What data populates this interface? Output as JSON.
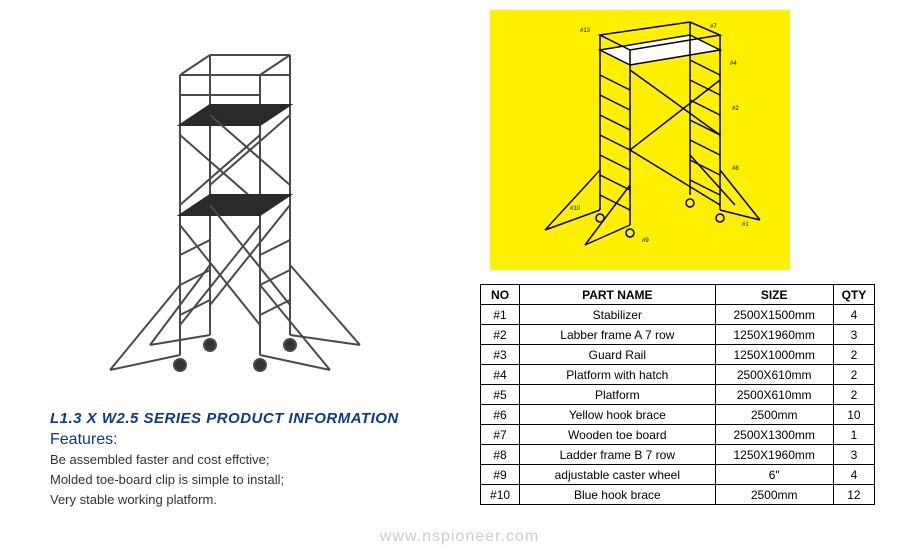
{
  "title": "L1.3 X W2.5 SERIES PRODUCT INFORMATION",
  "features_label": "Features:",
  "features": [
    "Be assembled faster and cost effctive;",
    "Molded toe-board clip is simple to install;",
    "Very stable working platform."
  ],
  "colors": {
    "title_blue": "#0a3a8a",
    "diagram_bg": "#fff000",
    "border": "#000000",
    "text": "#333333",
    "watermark": "#cccccc"
  },
  "table": {
    "headers": {
      "no": "NO",
      "name": "PART NAME",
      "size": "SIZE",
      "qty": "QTY"
    },
    "rows": [
      {
        "no": "#1",
        "name": "Stabilizer",
        "size": "2500X1500mm",
        "qty": "4"
      },
      {
        "no": "#2",
        "name": "Labber frame A 7 row",
        "size": "1250X1960mm",
        "qty": "3"
      },
      {
        "no": "#3",
        "name": "Guard Rail",
        "size": "1250X1000mm",
        "qty": "2"
      },
      {
        "no": "#4",
        "name": "Platform with hatch",
        "size": "2500X610mm",
        "qty": "2"
      },
      {
        "no": "#5",
        "name": "Platform",
        "size": "2500X610mm",
        "qty": "2"
      },
      {
        "no": "#6",
        "name": "Yellow hook brace",
        "size": "2500mm",
        "qty": "10"
      },
      {
        "no": "#7",
        "name": "Wooden toe board",
        "size": "2500X1300mm",
        "qty": "1"
      },
      {
        "no": "#8",
        "name": "Ladder frame B 7 row",
        "size": "1250X1960mm",
        "qty": "3"
      },
      {
        "no": "#9",
        "name": "adjustable caster wheel",
        "size": "6\"",
        "qty": "4"
      },
      {
        "no": "#10",
        "name": "Blue hook brace",
        "size": "2500mm",
        "qty": "12"
      }
    ]
  },
  "watermark": "www.nspioneer.com"
}
